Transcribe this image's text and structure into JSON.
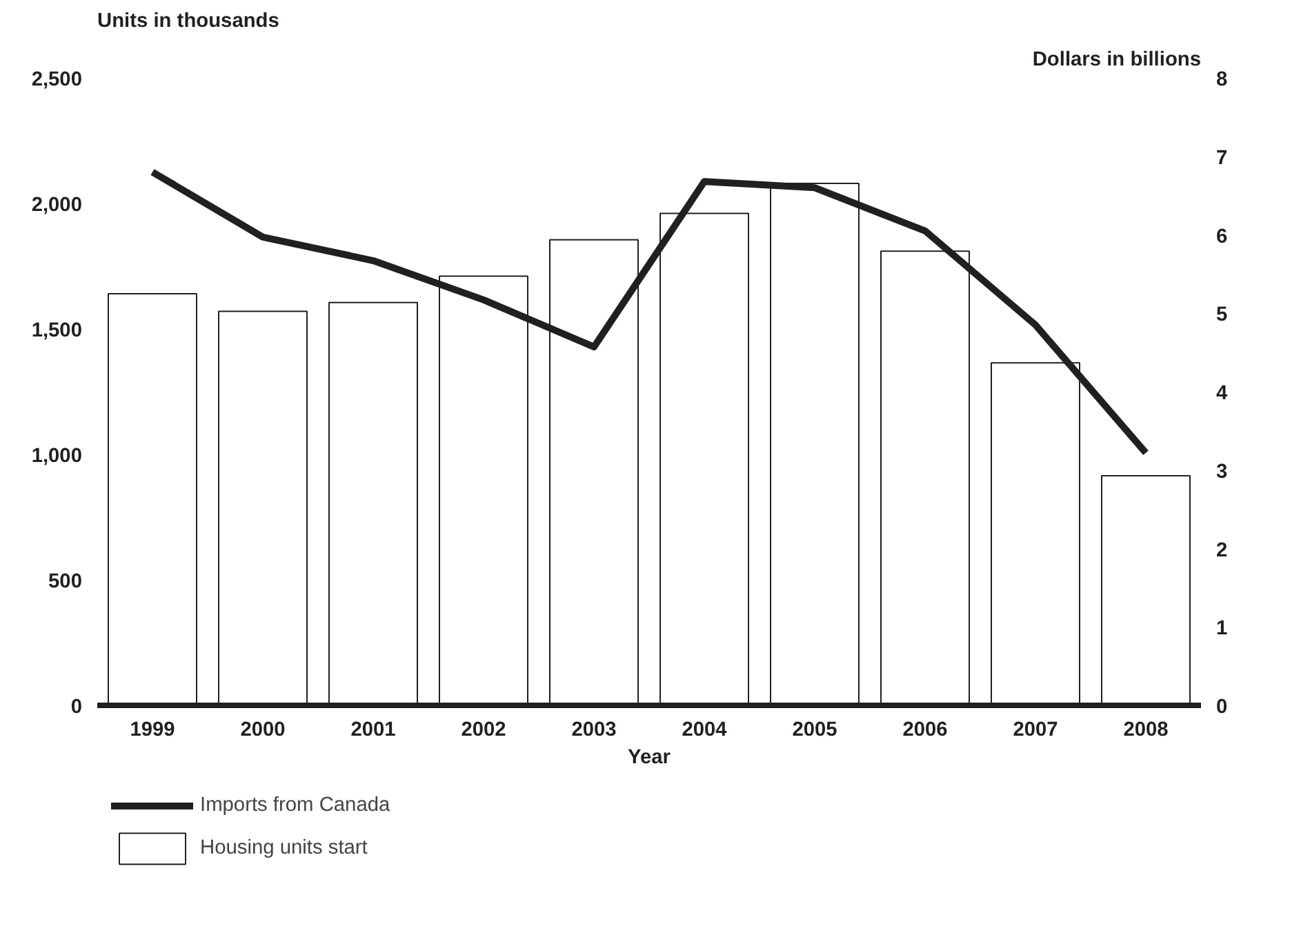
{
  "chart_data": {
    "type": "bar",
    "xlabel": "Year",
    "ylabel": "Units in thousands",
    "y2label": "Dollars in billions",
    "categories": [
      "1999",
      "2000",
      "2001",
      "2002",
      "2003",
      "2004",
      "2005",
      "2006",
      "2007",
      "2008"
    ],
    "series": [
      {
        "name": "Housing units start",
        "type": "bar",
        "color": "#ffffff",
        "values": [
          1640,
          1570,
          1605,
          1710,
          1855,
          1960,
          2080,
          1810,
          1365,
          915
        ]
      },
      {
        "name": "Imports from Canada",
        "type": "line",
        "axis": "y2",
        "color": "#231f20",
        "values": [
          6.8,
          5.97,
          5.67,
          5.17,
          4.57,
          6.68,
          6.6,
          6.05,
          4.85,
          3.22
        ]
      }
    ],
    "ylim": [
      0,
      2500
    ],
    "yticks": [
      0,
      {
        "value": 500,
        "label": "500"
      },
      {
        "value": 1000,
        "label": "1,000"
      },
      {
        "value": 1500,
        "label": "1,500"
      },
      {
        "value": 2000,
        "label": "2,000"
      },
      {
        "value": 2500,
        "label": "2,500"
      }
    ],
    "y2lim": [
      0,
      8
    ],
    "y2ticks": [
      0,
      1,
      2,
      3,
      4,
      5,
      6,
      7,
      8
    ],
    "grid": false,
    "legend": "bottom",
    "marker": "none",
    "line_style": "solid"
  }
}
